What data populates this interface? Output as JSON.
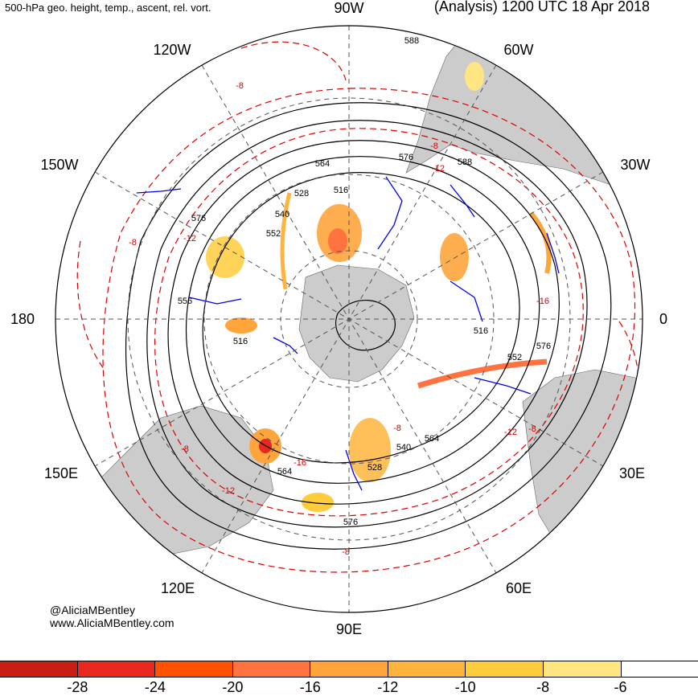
{
  "header": {
    "left_title": "500-hPa geo. height, temp., ascent, rel. vort.",
    "right_title": "(Analysis) 1200 UTC 18 Apr 2018"
  },
  "credits": {
    "handle": "@AliciaMBentley",
    "website": "www.AliciaMBentley.com"
  },
  "longitude_labels": [
    "90W",
    "60W",
    "30W",
    "0",
    "30E",
    "60E",
    "90E",
    "120E",
    "150E",
    "180",
    "150W",
    "120W"
  ],
  "height_contour_labels": [
    "588",
    "576",
    "588",
    "564",
    "528",
    "516",
    "540",
    "552",
    "576",
    "556",
    "516",
    "516",
    "552",
    "576",
    "564",
    "540",
    "528",
    "564",
    "576"
  ],
  "vorticity_contour_labels": [
    "-8",
    "-8",
    "-12",
    "-8",
    "-12",
    "-16",
    "-12",
    "-8",
    "-8",
    "-12",
    "-16",
    "-8",
    "-8"
  ],
  "colors": {
    "land": "#cccccc",
    "height_contour": "#000000",
    "temperature_contour": "#dd0000",
    "ascent_contour": "#0000ee",
    "grid": "#555555"
  },
  "colorbar": {
    "tick_labels": [
      "-28",
      "-24",
      "-20",
      "-16",
      "-12",
      "-10",
      "-8",
      "-6"
    ],
    "swatch_colors": [
      "#c81e14",
      "#e8281e",
      "#ff5000",
      "#ff7340",
      "#ffa53c",
      "#ffb43c",
      "#ffcd3c",
      "#ffe682",
      "#ffffff"
    ]
  }
}
